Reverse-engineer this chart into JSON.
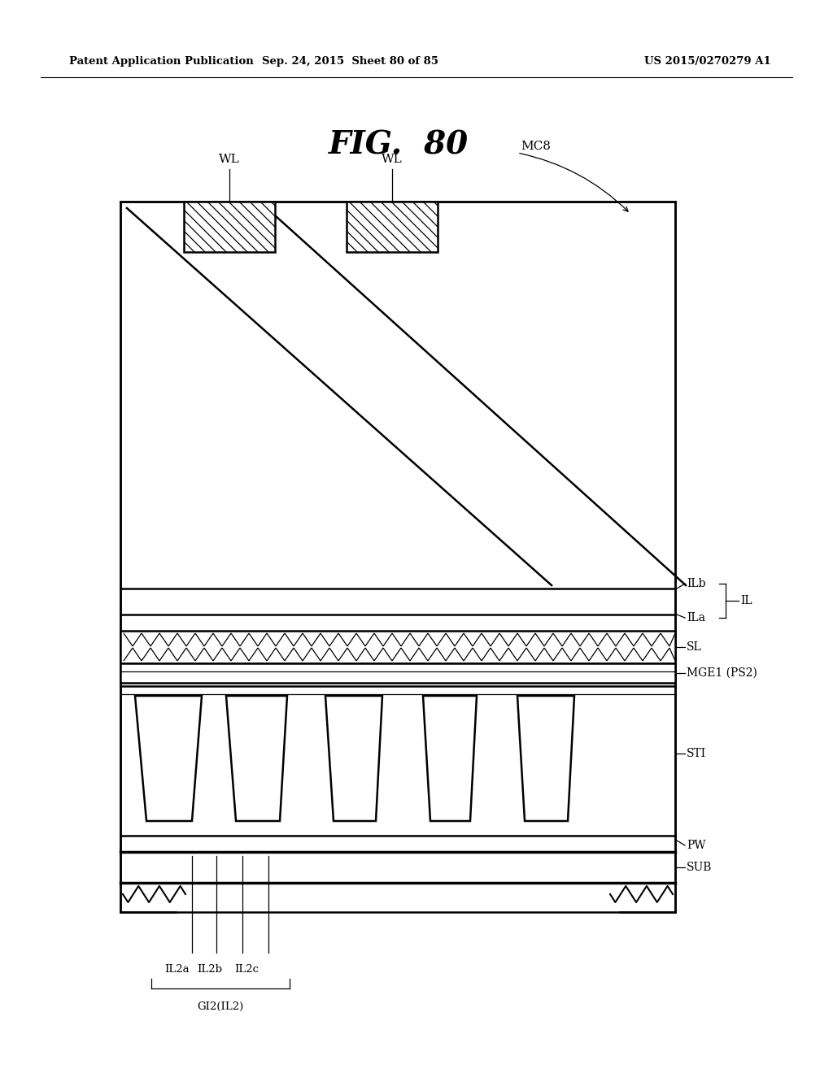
{
  "bg_color": "#ffffff",
  "header_left": "Patent Application Publication",
  "header_mid": "Sep. 24, 2015  Sheet 80 of 85",
  "header_right": "US 2015/0270279 A1",
  "title": "FIG.  80",
  "fig_width": 10.24,
  "fig_height": 13.2,
  "dpi": 100
}
